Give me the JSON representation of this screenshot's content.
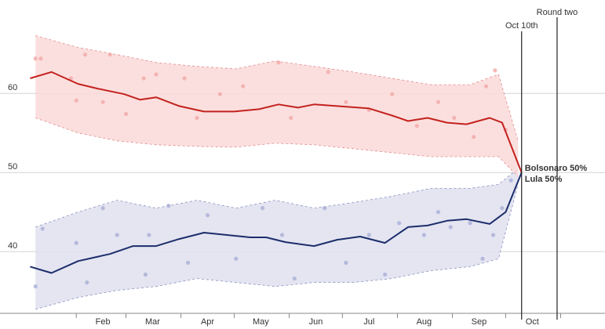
{
  "chart_data": {
    "type": "line",
    "xlim": [
      -11,
      330
    ],
    "ylim": [
      32.2,
      71.8
    ],
    "yticks": [
      40,
      50,
      60
    ],
    "grid": true,
    "xticks": [
      {
        "value": 32,
        "label": "Feb"
      },
      {
        "value": 60,
        "label": "Mar"
      },
      {
        "value": 91,
        "label": "Apr"
      },
      {
        "value": 121,
        "label": "May"
      },
      {
        "value": 152,
        "label": "Jun"
      },
      {
        "value": 182,
        "label": "Jul"
      },
      {
        "value": 213,
        "label": "Aug"
      },
      {
        "value": 244,
        "label": "Sep"
      },
      {
        "value": 274,
        "label": "Oct"
      },
      {
        "value": 305,
        "label": null
      }
    ],
    "annotations": [
      {
        "x": 283,
        "text": "Oct 10th"
      },
      {
        "x": 303,
        "text": "Round two"
      }
    ],
    "series": [
      {
        "color": "#1b2d6b",
        "band_color": "#dfe1ee",
        "band_edge": "#8a90c0",
        "point_color": "#a9aed6",
        "x": [
          6,
          18,
          33,
          51,
          64,
          77,
          90,
          104,
          117,
          130,
          139,
          150,
          166,
          179,
          192,
          206,
          219,
          230,
          241,
          252,
          265,
          274,
          283
        ],
        "values": [
          38.1,
          37.3,
          38.8,
          39.7,
          40.7,
          40.7,
          41.6,
          42.4,
          42.1,
          41.8,
          41.8,
          41.2,
          40.7,
          41.5,
          41.9,
          41.1,
          43.1,
          43.3,
          43.9,
          44.1,
          43.5,
          45.0,
          50
        ],
        "value_labels": [
          null,
          null,
          null,
          null,
          null,
          null,
          null,
          null,
          null,
          null,
          null,
          null,
          null,
          null,
          null,
          null,
          null,
          null,
          null,
          null,
          null,
          null,
          "Bolsonaro 50%"
        ],
        "band": {
          "x": [
            9,
            33,
            55,
            77,
            100,
            122,
            144,
            166,
            188,
            210,
            232,
            254,
            270,
            281
          ],
          "upper": [
            43.1,
            45.0,
            46.5,
            45.5,
            46.5,
            45.5,
            46.5,
            45.5,
            46.2,
            47.0,
            48.0,
            48.0,
            48.5,
            50.5
          ],
          "lower": [
            32.7,
            34.2,
            35.1,
            35.6,
            36.6,
            36.1,
            35.6,
            36.1,
            36.1,
            36.6,
            37.6,
            38.1,
            39.1,
            48.5
          ]
        },
        "points": {
          "x": [
            9,
            13,
            32,
            38,
            47,
            55,
            71,
            73,
            84,
            95,
            106,
            122,
            137,
            148,
            155,
            172,
            184,
            197,
            206,
            214,
            228,
            236,
            243,
            254,
            261,
            267,
            272,
            277
          ],
          "y": [
            35.6,
            42.9,
            41.1,
            36.1,
            45.5,
            42.1,
            37.1,
            42.1,
            45.8,
            38.6,
            44.6,
            39.1,
            45.5,
            42.1,
            36.6,
            45.5,
            38.6,
            42.1,
            37.1,
            43.6,
            42.1,
            45.0,
            43.1,
            43.6,
            39.1,
            42.1,
            45.5,
            49.0
          ]
        }
      },
      {
        "color": "#c3221e",
        "band_color": "#fad9d8",
        "band_edge": "#e08a88",
        "point_color": "#f1a9a6",
        "x": [
          6,
          18,
          33,
          44,
          59,
          68,
          77,
          90,
          104,
          121,
          135,
          146,
          157,
          166,
          179,
          197,
          210,
          219,
          230,
          241,
          252,
          265,
          272,
          283
        ],
        "values": [
          61.9,
          62.7,
          61.2,
          60.6,
          59.9,
          59.2,
          59.5,
          58.4,
          57.7,
          57.7,
          58.0,
          58.6,
          58.2,
          58.6,
          58.4,
          58.1,
          57.2,
          56.5,
          56.9,
          56.3,
          56.1,
          56.9,
          56.3,
          50
        ],
        "value_labels": [
          null,
          null,
          null,
          null,
          null,
          null,
          null,
          null,
          null,
          null,
          null,
          null,
          null,
          null,
          null,
          null,
          null,
          null,
          null,
          null,
          null,
          null,
          null,
          "Lula 50%"
        ],
        "band": {
          "x": [
            9,
            33,
            55,
            77,
            100,
            122,
            144,
            166,
            188,
            210,
            232,
            254,
            270,
            281
          ],
          "upper": [
            67.3,
            65.8,
            64.9,
            63.9,
            63.4,
            63.1,
            64.1,
            63.4,
            62.7,
            61.9,
            61.1,
            61.1,
            62.4,
            54
          ],
          "lower": [
            56.9,
            55,
            54,
            53.5,
            53.3,
            53.2,
            53.7,
            53.5,
            53,
            52.5,
            52,
            52,
            52,
            49.5
          ]
        },
        "points": {
          "x": [
            9,
            12,
            29,
            32,
            37,
            47,
            51,
            60,
            70,
            77,
            93,
            100,
            113,
            126,
            146,
            153,
            174,
            184,
            197,
            210,
            224,
            236,
            245,
            256,
            263,
            268,
            274
          ],
          "y": [
            64.4,
            64.4,
            61.9,
            59.1,
            64.9,
            58.9,
            64.9,
            57.4,
            61.9,
            62.4,
            61.9,
            56.9,
            59.9,
            60.9,
            63.9,
            56.9,
            62.7,
            58.9,
            57.9,
            59.9,
            55.9,
            58.9,
            56.9,
            54.5,
            60.9,
            62.9,
            55.4
          ]
        }
      }
    ]
  }
}
